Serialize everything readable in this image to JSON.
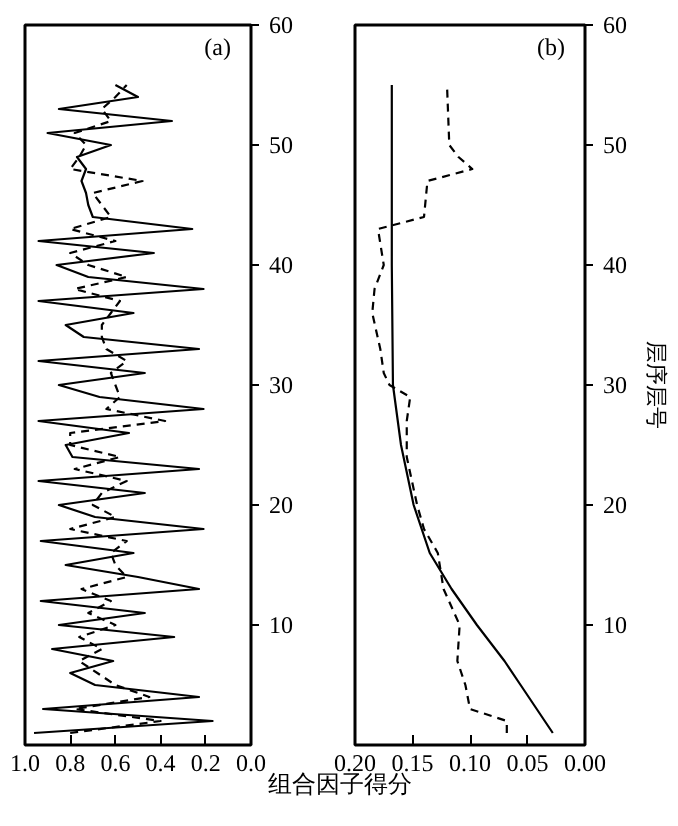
{
  "chart_data": [
    {
      "type": "line",
      "title": "(a)",
      "xlabel": "组合因子得分",
      "xlim": [
        1.0,
        0.0
      ],
      "xticks": [
        {
          "value": 1.0,
          "label": "1.0"
        },
        0.8,
        0.6,
        0.4,
        0.2,
        {
          "value": 0.0,
          "label": "0.0"
        }
      ],
      "ylim": [
        0,
        60
      ],
      "yticks": [
        10,
        20,
        30,
        40,
        50,
        60
      ],
      "series": [
        {
          "color": "#000000",
          "line_style": "solid",
          "x": [
            0.96,
            0.17,
            0.92,
            0.23,
            0.69,
            0.8,
            0.61,
            0.88,
            0.34,
            0.85,
            0.47,
            0.93,
            0.23,
            0.5,
            0.82,
            0.52,
            0.93,
            0.21,
            0.69,
            0.85,
            0.47,
            0.94,
            0.23,
            0.79,
            0.82,
            0.54,
            0.94,
            0.21,
            0.67,
            0.85,
            0.47,
            0.94,
            0.23,
            0.74,
            0.82,
            0.52,
            0.94,
            0.21,
            0.72,
            0.86,
            0.43,
            0.94,
            0.26,
            0.7,
            0.72,
            0.73,
            0.75,
            0.73,
            0.77,
            0.62,
            0.9,
            0.35,
            0.85,
            0.5,
            0.6
          ],
          "values": [
            1,
            2,
            3,
            4,
            5,
            6,
            7,
            8,
            9,
            10,
            11,
            12,
            13,
            14,
            15,
            16,
            17,
            18,
            19,
            20,
            21,
            22,
            23,
            24,
            25,
            26,
            27,
            28,
            29,
            30,
            31,
            32,
            33,
            34,
            35,
            36,
            37,
            38,
            39,
            40,
            41,
            42,
            43,
            44,
            45,
            46,
            47,
            48,
            49,
            50,
            51,
            52,
            53,
            54,
            55
          ]
        },
        {
          "color": "#000000",
          "line_style": "dashed",
          "x": [
            0.8,
            0.4,
            0.78,
            0.45,
            0.6,
            0.68,
            0.76,
            0.66,
            0.76,
            0.6,
            0.72,
            0.62,
            0.75,
            0.55,
            0.6,
            0.62,
            0.55,
            0.8,
            0.6,
            0.7,
            0.66,
            0.55,
            0.78,
            0.58,
            0.8,
            0.8,
            0.38,
            0.64,
            0.58,
            0.6,
            0.62,
            0.55,
            0.64,
            0.66,
            0.66,
            0.62,
            0.58,
            0.78,
            0.55,
            0.72,
            0.8,
            0.6,
            0.8,
            0.62,
            0.66,
            0.7,
            0.48,
            0.8,
            0.76,
            0.73,
            0.78,
            0.62,
            0.66,
            0.6,
            0.55
          ],
          "values": [
            1,
            2,
            3,
            4,
            5,
            6,
            7,
            8,
            9,
            10,
            11,
            12,
            13,
            14,
            15,
            16,
            17,
            18,
            19,
            20,
            21,
            22,
            23,
            24,
            25,
            26,
            27,
            28,
            29,
            30,
            31,
            32,
            33,
            34,
            35,
            36,
            37,
            38,
            39,
            40,
            41,
            42,
            43,
            44,
            45,
            46,
            47,
            48,
            49,
            50,
            51,
            52,
            53,
            54,
            55
          ]
        }
      ]
    },
    {
      "type": "line",
      "title": "(b)",
      "ylabel": "层序层号",
      "xlim": [
        0.2,
        0.0
      ],
      "xticks": [
        {
          "value": 0.2,
          "label": "0.20"
        },
        0.15,
        {
          "value": 0.1,
          "label": "0.10"
        },
        0.05,
        {
          "value": 0.0,
          "label": "0.00"
        }
      ],
      "ylim": [
        0,
        60
      ],
      "yticks": [
        10,
        20,
        30,
        40,
        50,
        60
      ],
      "series": [
        {
          "color": "#000000",
          "line_style": "solid",
          "x": [
            0.028,
            0.042,
            0.056,
            0.07,
            0.094,
            0.116,
            0.135,
            0.149,
            0.16,
            0.167,
            0.168,
            0.168
          ],
          "values": [
            1,
            3,
            5,
            7,
            10,
            13,
            16,
            20,
            25,
            30,
            40,
            55
          ]
        },
        {
          "color": "#000000",
          "line_style": "dashed",
          "x": [
            0.068,
            0.068,
            0.1,
            0.104,
            0.111,
            0.109,
            0.123,
            0.128,
            0.14,
            0.146,
            0.155,
            0.155,
            0.152,
            0.17,
            0.175,
            0.178,
            0.185,
            0.183,
            0.175,
            0.18,
            0.14,
            0.137,
            0.098,
            0.11,
            0.118,
            0.12
          ],
          "values": [
            1,
            2,
            3,
            5,
            7,
            10,
            13,
            16,
            18,
            20,
            24,
            27,
            29,
            30,
            31,
            33,
            36,
            38,
            40,
            43,
            44,
            47,
            48,
            49,
            50,
            55
          ]
        }
      ]
    }
  ]
}
